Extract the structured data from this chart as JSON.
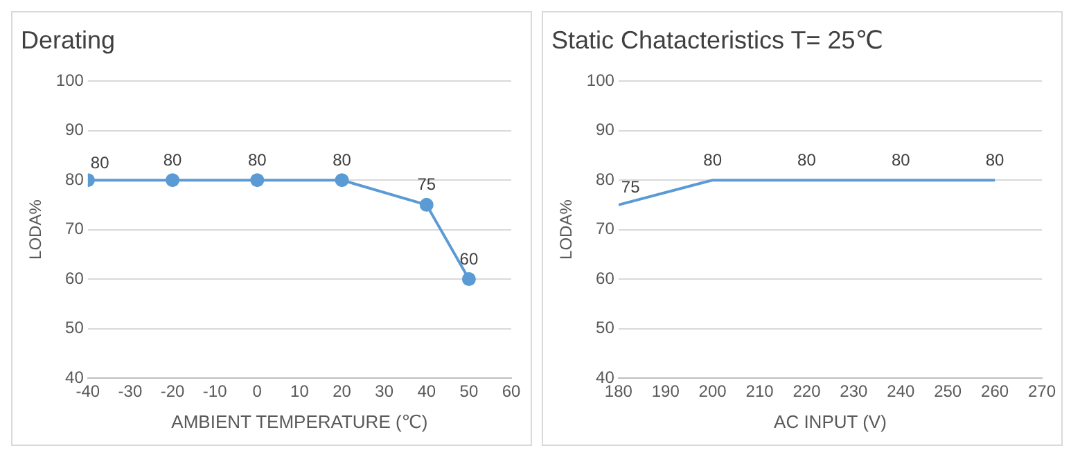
{
  "chart_data": [
    {
      "type": "line",
      "title": "Derating",
      "xlabel": "AMBIENT TEMPERATURE (℃)",
      "ylabel": "LODA%",
      "series": [
        {
          "color": "#5b9bd5",
          "x": [
            -40,
            -20,
            0,
            20,
            40,
            50
          ],
          "values": [
            80,
            80,
            80,
            80,
            75,
            60
          ]
        }
      ],
      "xlim": [
        -40,
        60
      ],
      "xticks": [
        -40,
        -30,
        -20,
        -10,
        0,
        10,
        20,
        30,
        40,
        50,
        60
      ],
      "ylim": [
        40,
        100
      ],
      "yticks": [
        40,
        50,
        60,
        70,
        80,
        90,
        100
      ],
      "grid": "y",
      "marker": "circle",
      "data_labels": true,
      "legend": false
    },
    {
      "type": "line",
      "title": "Static Chatacteristics T= 25℃",
      "xlabel": "AC INPUT (V)",
      "ylabel": "LODA%",
      "series": [
        {
          "color": "#5b9bd5",
          "x": [
            180,
            200,
            220,
            240,
            260
          ],
          "values": [
            75,
            80,
            80,
            80,
            80
          ]
        }
      ],
      "xlim": [
        180,
        270
      ],
      "xticks": [
        180,
        190,
        200,
        210,
        220,
        230,
        240,
        250,
        260,
        270
      ],
      "ylim": [
        40,
        100
      ],
      "yticks": [
        40,
        50,
        60,
        70,
        80,
        90,
        100
      ],
      "grid": "y",
      "marker": "none",
      "data_labels": true,
      "legend": false
    }
  ]
}
